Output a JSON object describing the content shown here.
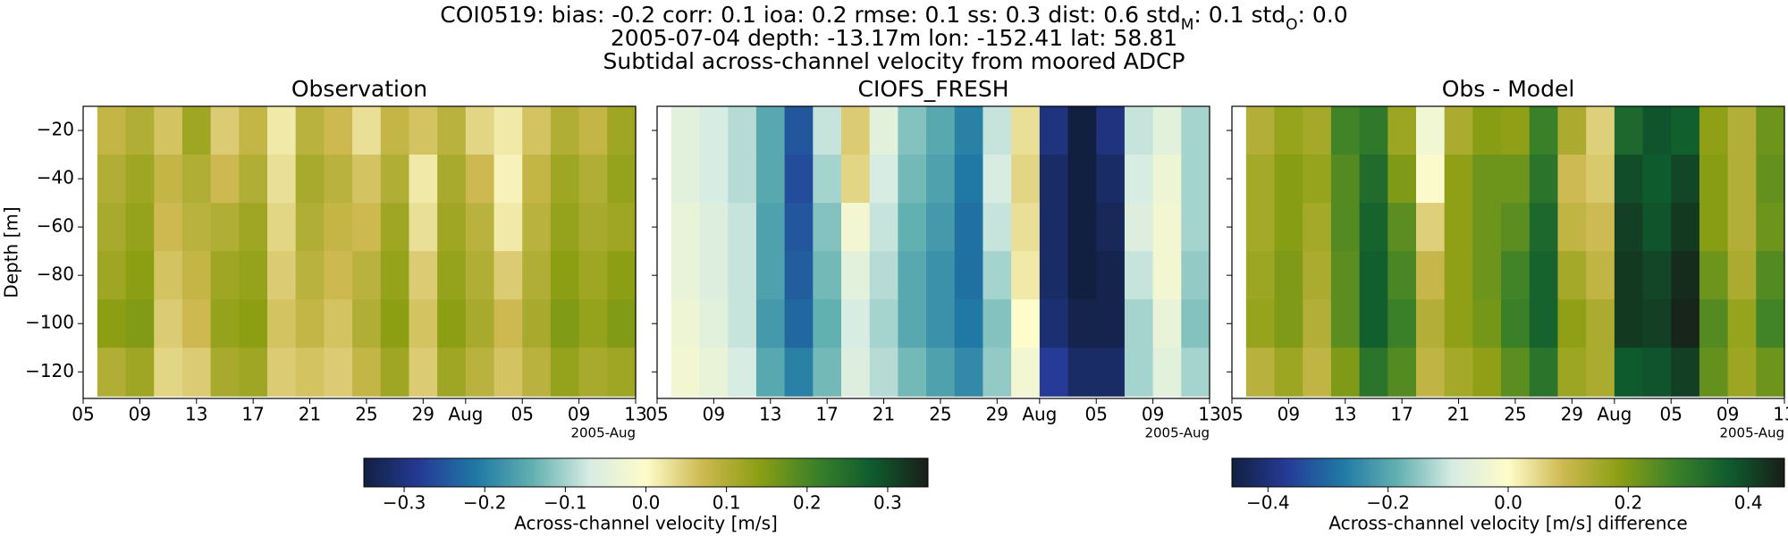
{
  "figure": {
    "title_parts": [
      {
        "text": "COI0519: bias: -0.2  corr: 0.1  ioa: 0.2  rmse: 0.1  ss: 0.3  dist: 0.6  std"
      },
      {
        "text": "M",
        "sub": true
      },
      {
        "text": ": 0.1  std"
      },
      {
        "text": "O",
        "sub": true
      },
      {
        "text": ": 0.0"
      }
    ],
    "subtitle": "2005-07-04 depth: -13.17m lon: -152.41 lat: 58.81",
    "caption": "Subtidal across-channel velocity from moored ADCP",
    "colormap": [
      "#112040",
      "#253b97",
      "#1f79a4",
      "#62b1b1",
      "#d7ece3",
      "#fefcca",
      "#cdb950",
      "#8c9f13",
      "#3c8228",
      "#0e5c2f",
      "#191e17"
    ]
  },
  "chart_data": [
    {
      "type": "heatmap",
      "title": "Observation",
      "y_label": "Depth [m]",
      "x_offset_label": "2005-Aug",
      "xlim": [
        "2005-07-05",
        "2005-08-13"
      ],
      "xticks": [
        {
          "value": "2005-07-05",
          "label": "05"
        },
        {
          "value": "2005-07-09",
          "label": "09"
        },
        {
          "value": "2005-07-13",
          "label": "13"
        },
        {
          "value": "2005-07-17",
          "label": "17"
        },
        {
          "value": "2005-07-21",
          "label": "21"
        },
        {
          "value": "2005-07-25",
          "label": "25"
        },
        {
          "value": "2005-07-29",
          "label": "29"
        },
        {
          "value": "2005-08-01",
          "label": "Aug"
        },
        {
          "value": "2005-08-05",
          "label": "05"
        },
        {
          "value": "2005-08-09",
          "label": "09"
        },
        {
          "value": "2005-08-13",
          "label": "13"
        }
      ],
      "ylim": [
        -131,
        -10
      ],
      "yticks": [
        {
          "value": -20,
          "label": "−20"
        },
        {
          "value": -40,
          "label": "−40"
        },
        {
          "value": -60,
          "label": "−60"
        },
        {
          "value": -80,
          "label": "−80"
        },
        {
          "value": -100,
          "label": "−100"
        },
        {
          "value": -120,
          "label": "−120"
        }
      ],
      "x": [
        "2005-07-07",
        "2005-07-09",
        "2005-07-11",
        "2005-07-13",
        "2005-07-15",
        "2005-07-17",
        "2005-07-19",
        "2005-07-21",
        "2005-07-23",
        "2005-07-25",
        "2005-07-27",
        "2005-07-29",
        "2005-07-31",
        "2005-08-02",
        "2005-08-04",
        "2005-08-06",
        "2005-08-08",
        "2005-08-10",
        "2005-08-12"
      ],
      "y": [
        -20,
        -40,
        -60,
        -80,
        -100,
        -120
      ],
      "z": [
        [
          0.08,
          0.1,
          0.06,
          0.12,
          0.05,
          0.08,
          0.02,
          0.09,
          0.07,
          0.03,
          0.08,
          0.06,
          0.09,
          0.04,
          0.02,
          0.06,
          0.1,
          0.08,
          0.12
        ],
        [
          0.1,
          0.12,
          0.08,
          0.1,
          0.07,
          0.1,
          0.03,
          0.11,
          0.09,
          0.06,
          0.1,
          0.02,
          0.11,
          0.07,
          0.01,
          0.08,
          0.12,
          0.1,
          0.13
        ],
        [
          0.11,
          0.13,
          0.07,
          0.09,
          0.1,
          0.12,
          0.04,
          0.1,
          0.08,
          0.07,
          0.12,
          0.03,
          0.12,
          0.09,
          0.02,
          0.09,
          0.13,
          0.11,
          0.12
        ],
        [
          0.12,
          0.14,
          0.06,
          0.08,
          0.12,
          0.13,
          0.05,
          0.09,
          0.07,
          0.09,
          0.13,
          0.05,
          0.13,
          0.1,
          0.05,
          0.1,
          0.14,
          0.12,
          0.14
        ],
        [
          0.14,
          0.15,
          0.05,
          0.07,
          0.13,
          0.14,
          0.06,
          0.08,
          0.06,
          0.1,
          0.14,
          0.06,
          0.14,
          0.11,
          0.07,
          0.11,
          0.15,
          0.13,
          0.15
        ],
        [
          0.1,
          0.12,
          0.04,
          0.05,
          0.11,
          0.12,
          0.05,
          0.06,
          0.05,
          0.08,
          0.12,
          0.05,
          0.12,
          0.09,
          0.06,
          0.09,
          0.13,
          0.11,
          0.12
        ]
      ],
      "zlim": [
        -0.35,
        0.35
      ],
      "zticks": [
        {
          "value": -0.3,
          "label": "−0.3"
        },
        {
          "value": -0.2,
          "label": "−0.2"
        },
        {
          "value": -0.1,
          "label": "−0.1"
        },
        {
          "value": 0,
          "label": "0.0"
        },
        {
          "value": 0.1,
          "label": "0.1"
        },
        {
          "value": 0.2,
          "label": "0.2"
        },
        {
          "value": 0.3,
          "label": "0.3"
        }
      ],
      "colorbar_label": "Across-channel velocity [m/s]"
    },
    {
      "type": "heatmap",
      "title": "CIOFS_FRESH",
      "x_offset_label": "2005-Aug",
      "xlim": [
        "2005-07-05",
        "2005-08-13"
      ],
      "xticks": [
        {
          "value": "2005-07-05",
          "label": "05"
        },
        {
          "value": "2005-07-09",
          "label": "09"
        },
        {
          "value": "2005-07-13",
          "label": "13"
        },
        {
          "value": "2005-07-17",
          "label": "17"
        },
        {
          "value": "2005-07-21",
          "label": "21"
        },
        {
          "value": "2005-07-25",
          "label": "25"
        },
        {
          "value": "2005-07-29",
          "label": "29"
        },
        {
          "value": "2005-08-01",
          "label": "Aug"
        },
        {
          "value": "2005-08-05",
          "label": "05"
        },
        {
          "value": "2005-08-09",
          "label": "09"
        },
        {
          "value": "2005-08-13",
          "label": "13"
        }
      ],
      "ylim": [
        -131,
        -10
      ],
      "x": [
        "2005-07-07",
        "2005-07-09",
        "2005-07-11",
        "2005-07-13",
        "2005-07-15",
        "2005-07-17",
        "2005-07-19",
        "2005-07-21",
        "2005-07-23",
        "2005-07-25",
        "2005-07-27",
        "2005-07-29",
        "2005-07-31",
        "2005-08-02",
        "2005-08-04",
        "2005-08-06",
        "2005-08-08",
        "2005-08-10",
        "2005-08-12"
      ],
      "y": [
        -20,
        -40,
        -60,
        -80,
        -100,
        -120
      ],
      "z": [
        [
          -0.05,
          -0.07,
          -0.09,
          -0.15,
          -0.25,
          -0.08,
          0.05,
          -0.05,
          -0.12,
          -0.15,
          -0.2,
          -0.08,
          0.03,
          -0.3,
          -0.36,
          -0.3,
          -0.08,
          -0.05,
          -0.1
        ],
        [
          -0.05,
          -0.07,
          -0.09,
          -0.15,
          -0.26,
          -0.1,
          0.04,
          -0.07,
          -0.13,
          -0.16,
          -0.21,
          -0.07,
          0.04,
          -0.32,
          -0.36,
          -0.32,
          -0.07,
          -0.03,
          -0.1
        ],
        [
          -0.04,
          -0.06,
          -0.08,
          -0.16,
          -0.25,
          -0.12,
          -0.02,
          -0.08,
          -0.14,
          -0.17,
          -0.22,
          -0.08,
          0.03,
          -0.32,
          -0.36,
          -0.33,
          -0.06,
          -0.02,
          -0.1
        ],
        [
          -0.04,
          -0.06,
          -0.08,
          -0.16,
          -0.24,
          -0.13,
          -0.05,
          -0.09,
          -0.15,
          -0.18,
          -0.22,
          -0.1,
          0.02,
          -0.32,
          -0.35,
          -0.34,
          -0.08,
          -0.02,
          -0.11
        ],
        [
          -0.03,
          -0.05,
          -0.08,
          -0.17,
          -0.23,
          -0.14,
          -0.07,
          -0.1,
          -0.15,
          -0.18,
          -0.21,
          -0.12,
          0,
          -0.31,
          -0.34,
          -0.34,
          -0.1,
          -0.04,
          -0.12
        ],
        [
          -0.02,
          -0.04,
          -0.07,
          -0.15,
          -0.2,
          -0.13,
          -0.06,
          -0.09,
          -0.13,
          -0.16,
          -0.19,
          -0.11,
          -0.02,
          -0.28,
          -0.32,
          -0.32,
          -0.1,
          -0.05,
          -0.1
        ]
      ],
      "zlim": [
        -0.35,
        0.35
      ]
    },
    {
      "type": "heatmap",
      "title": "Obs - Model",
      "x_offset_label": "2005-Aug",
      "xlim": [
        "2005-07-05",
        "2005-08-13"
      ],
      "xticks": [
        {
          "value": "2005-07-05",
          "label": "05"
        },
        {
          "value": "2005-07-09",
          "label": "09"
        },
        {
          "value": "2005-07-13",
          "label": "13"
        },
        {
          "value": "2005-07-17",
          "label": "17"
        },
        {
          "value": "2005-07-21",
          "label": "21"
        },
        {
          "value": "2005-07-25",
          "label": "25"
        },
        {
          "value": "2005-07-29",
          "label": "29"
        },
        {
          "value": "2005-08-01",
          "label": "Aug"
        },
        {
          "value": "2005-08-05",
          "label": "05"
        },
        {
          "value": "2005-08-09",
          "label": "09"
        },
        {
          "value": "2005-08-13",
          "label": "13"
        }
      ],
      "ylim": [
        -131,
        -10
      ],
      "x": [
        "2005-07-07",
        "2005-07-09",
        "2005-07-11",
        "2005-07-13",
        "2005-07-15",
        "2005-07-17",
        "2005-07-19",
        "2005-07-21",
        "2005-07-23",
        "2005-07-25",
        "2005-07-27",
        "2005-07-29",
        "2005-07-31",
        "2005-08-02",
        "2005-08-04",
        "2005-08-06",
        "2005-08-08",
        "2005-08-10",
        "2005-08-12"
      ],
      "y": [
        -20,
        -40,
        -60,
        -80,
        -100,
        -120
      ],
      "z": [
        [
          0.13,
          0.17,
          0.15,
          0.27,
          0.3,
          0.16,
          -0.03,
          0.14,
          0.19,
          0.18,
          0.28,
          0.14,
          0.06,
          0.34,
          0.38,
          0.36,
          0.18,
          0.13,
          0.22
        ],
        [
          0.15,
          0.19,
          0.17,
          0.25,
          0.33,
          0.2,
          -0.01,
          0.18,
          0.22,
          0.22,
          0.31,
          0.09,
          0.07,
          0.39,
          0.37,
          0.4,
          0.19,
          0.13,
          0.23
        ],
        [
          0.15,
          0.19,
          0.15,
          0.25,
          0.35,
          0.24,
          0.06,
          0.18,
          0.22,
          0.24,
          0.34,
          0.11,
          0.09,
          0.41,
          0.38,
          0.42,
          0.19,
          0.13,
          0.22
        ],
        [
          0.16,
          0.2,
          0.14,
          0.24,
          0.36,
          0.26,
          0.1,
          0.18,
          0.22,
          0.27,
          0.35,
          0.15,
          0.11,
          0.42,
          0.4,
          0.44,
          0.22,
          0.14,
          0.25
        ],
        [
          0.17,
          0.2,
          0.13,
          0.24,
          0.36,
          0.28,
          0.13,
          0.18,
          0.21,
          0.28,
          0.35,
          0.18,
          0.14,
          0.42,
          0.41,
          0.45,
          0.25,
          0.17,
          0.27
        ],
        [
          0.12,
          0.16,
          0.11,
          0.2,
          0.31,
          0.25,
          0.11,
          0.15,
          0.18,
          0.24,
          0.31,
          0.16,
          0.14,
          0.37,
          0.38,
          0.41,
          0.23,
          0.16,
          0.22
        ]
      ],
      "zlim": [
        -0.46,
        0.46
      ],
      "zticks": [
        {
          "value": -0.4,
          "label": "−0.4"
        },
        {
          "value": -0.2,
          "label": "−0.2"
        },
        {
          "value": 0,
          "label": "0.0"
        },
        {
          "value": 0.2,
          "label": "0.2"
        },
        {
          "value": 0.4,
          "label": "0.4"
        }
      ],
      "colorbar_label": "Across-channel velocity [m/s] difference"
    }
  ]
}
